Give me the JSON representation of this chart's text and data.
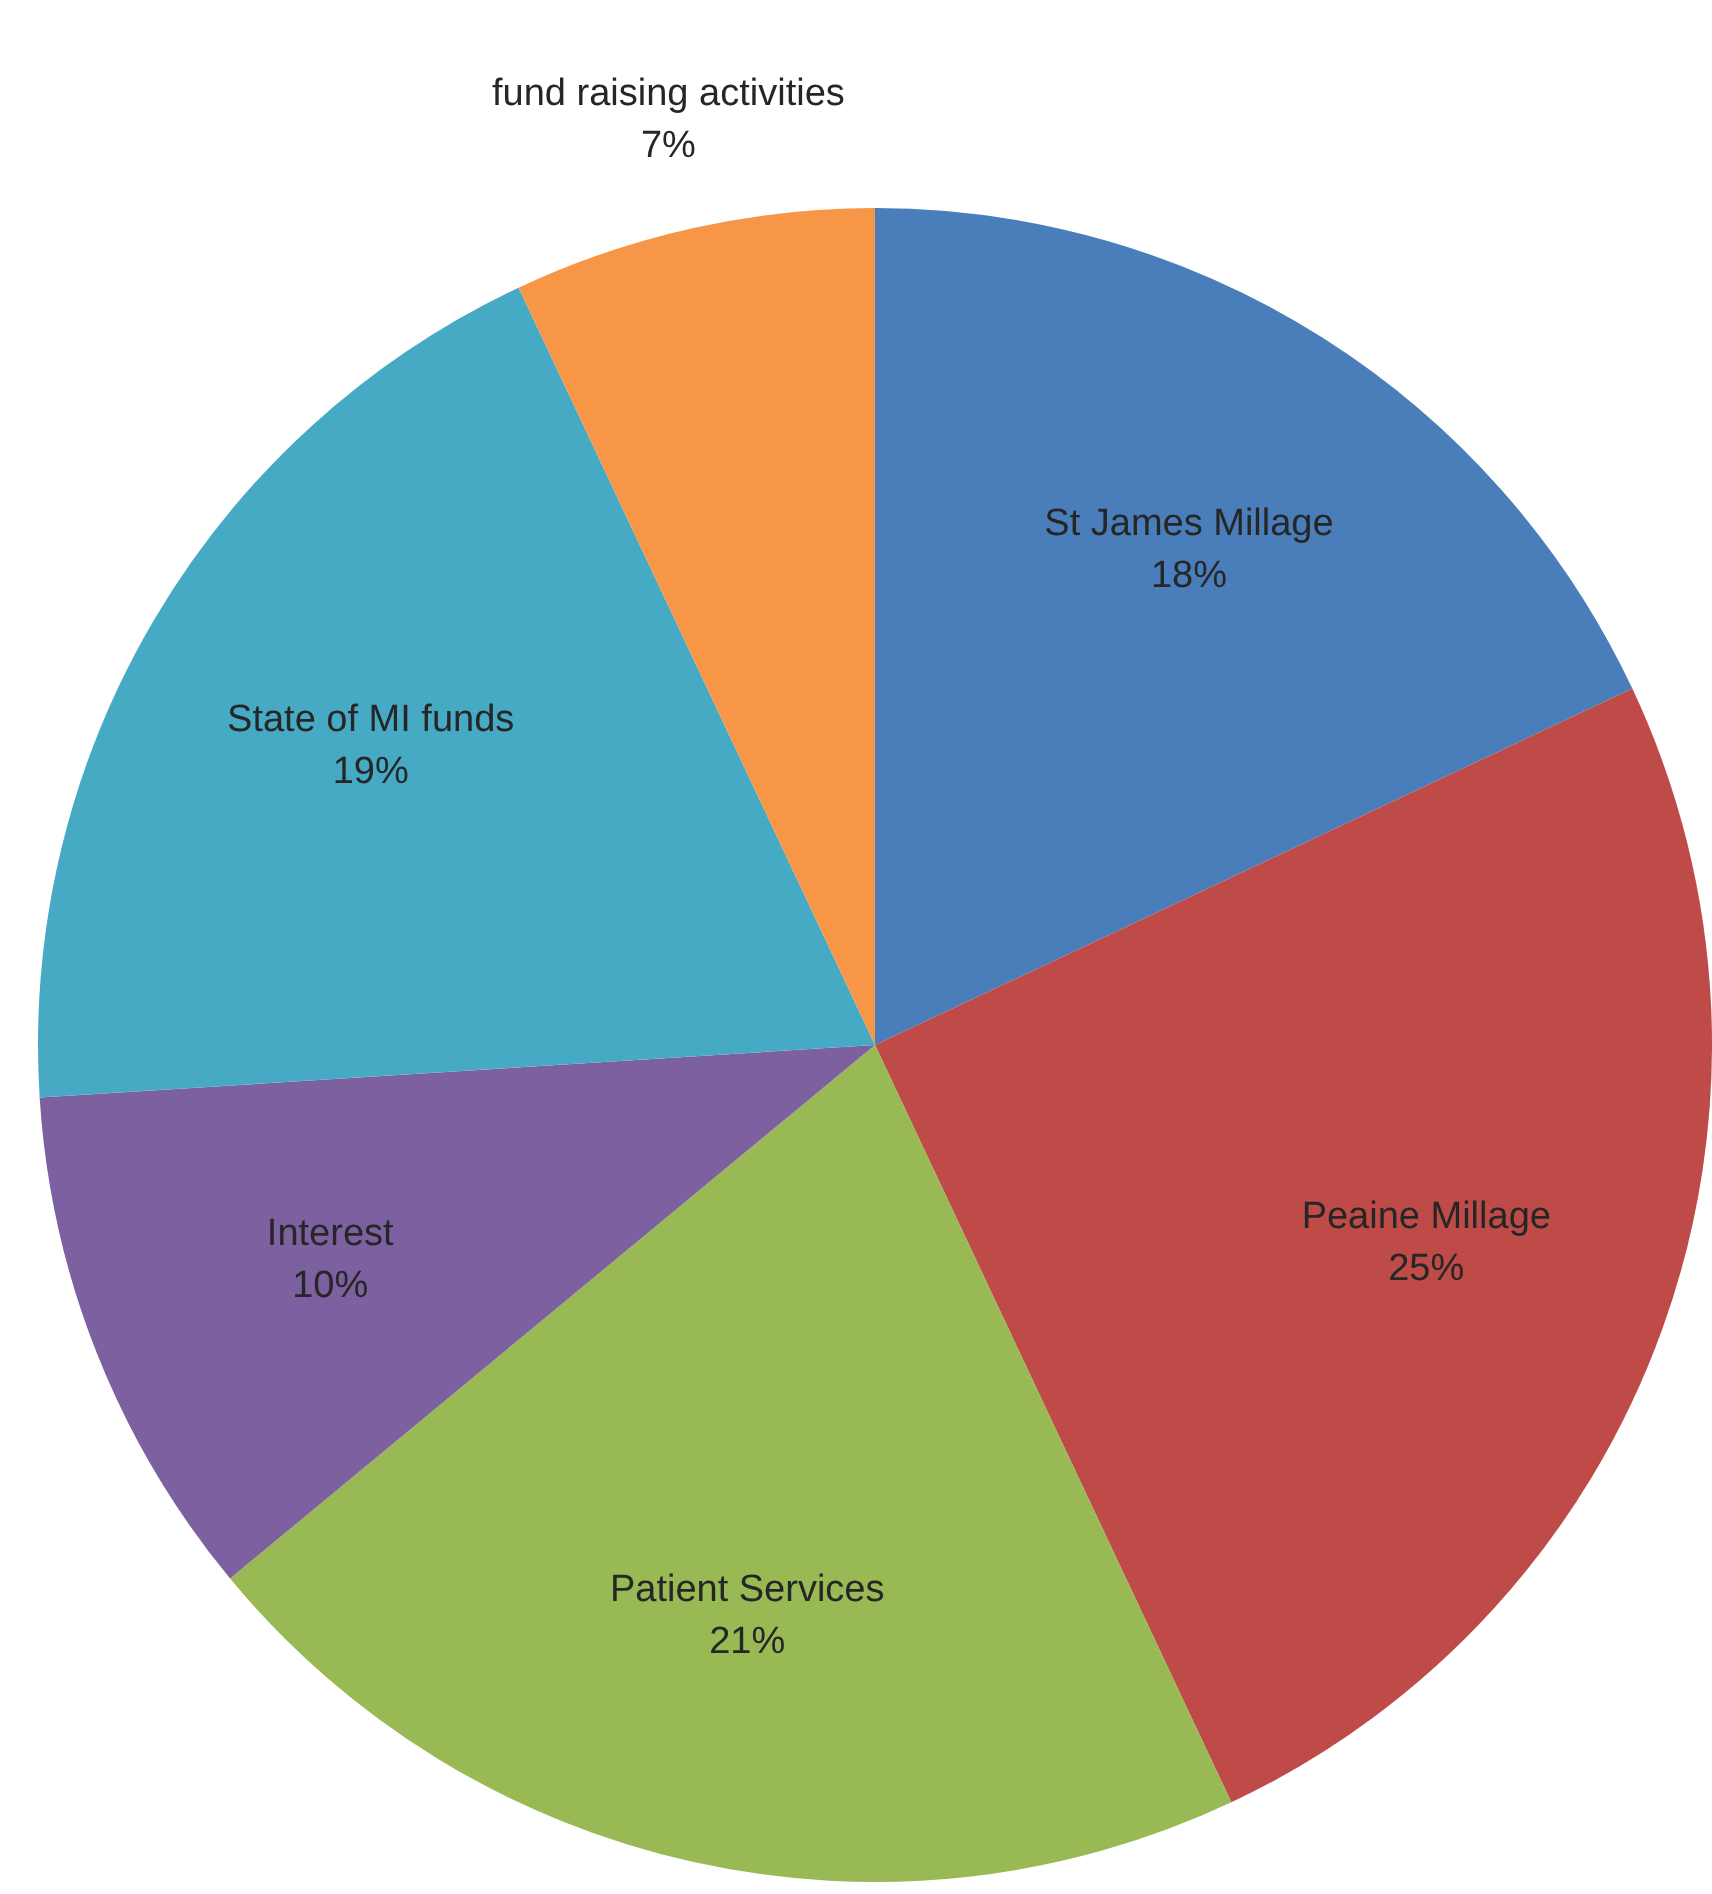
{
  "chart_data": {
    "type": "pie",
    "categories": [
      "St James Millage",
      "Peaine Millage",
      "Patient Services",
      "Interest",
      "State of MI funds",
      "fund raising activities"
    ],
    "values": [
      18,
      25,
      21,
      10,
      19,
      7
    ],
    "colors": [
      "#4a7ebb",
      "#be4b48",
      "#98b954",
      "#7d60a0",
      "#46aac5",
      "#f79646"
    ],
    "value_labels": [
      "18%",
      "25%",
      "21%",
      "10%",
      "19%",
      "7%"
    ],
    "legend": false
  }
}
